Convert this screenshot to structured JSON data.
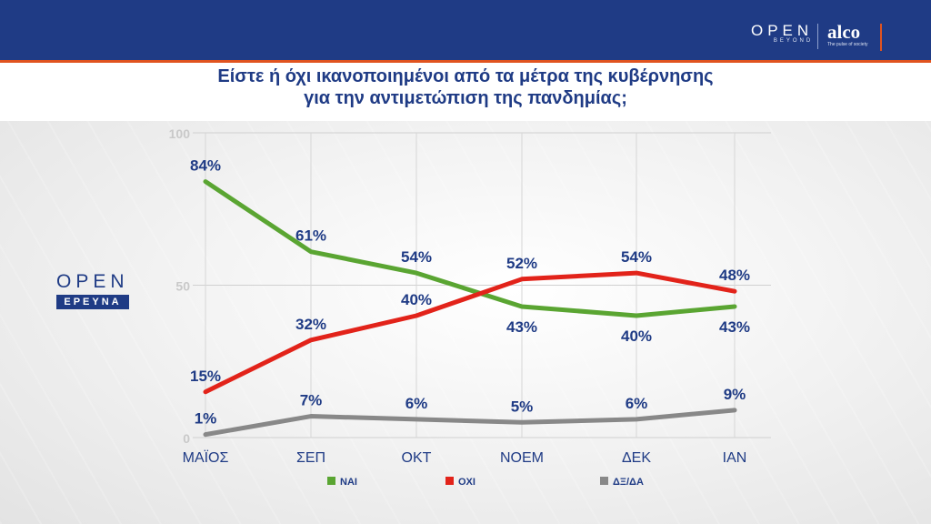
{
  "header": {
    "brand_open": "OPEN",
    "brand_open_sub": "BEYOND",
    "brand_alco": "alco",
    "brand_alco_sub": "The pulse of society"
  },
  "title_line1": "Είστε ή όχι ικανοποιημένοι από τα μέτρα της κυβέρνησης",
  "title_line2": "για την αντιμετώπιση της πανδημίας;",
  "logo": {
    "word": "OPEN",
    "badge": "ΕΡΕΥΝΑ"
  },
  "colors": {
    "header": "#1f3b85",
    "accent": "#e0531f",
    "label": "#1f3b85"
  },
  "chart_data": {
    "type": "line",
    "categories": [
      "ΜΑΪΟΣ",
      "ΣΕΠ",
      "ΟΚΤ",
      "ΝΟΕΜ",
      "ΔΕΚ",
      "ΙΑΝ"
    ],
    "y_ticks": [
      "0",
      "50",
      "100"
    ],
    "ylim": [
      0,
      100
    ],
    "grid": true,
    "legend_position": "bottom",
    "series": [
      {
        "name": "ΝΑΙ",
        "color": "#5aa532",
        "values": [
          84,
          61,
          54,
          43,
          40,
          43
        ],
        "labels": [
          "84%",
          "61%",
          "54%",
          "43%",
          "40%",
          "43%"
        ],
        "label_pos": [
          "above",
          "above",
          "above",
          "below",
          "below",
          "below"
        ]
      },
      {
        "name": "ΟΧΙ",
        "color": "#e2231a",
        "values": [
          15,
          32,
          40,
          52,
          54,
          48
        ],
        "labels": [
          "15%",
          "32%",
          "40%",
          "52%",
          "54%",
          "48%"
        ],
        "label_pos": [
          "above",
          "above",
          "above",
          "above",
          "above",
          "above"
        ]
      },
      {
        "name": "ΔΞ/ΔΑ",
        "color": "#888888",
        "values": [
          1,
          7,
          6,
          5,
          6,
          9
        ],
        "labels": [
          "1%",
          "7%",
          "6%",
          "5%",
          "6%",
          "9%"
        ],
        "label_pos": [
          "above",
          "above",
          "above",
          "above",
          "above",
          "above"
        ]
      }
    ]
  }
}
